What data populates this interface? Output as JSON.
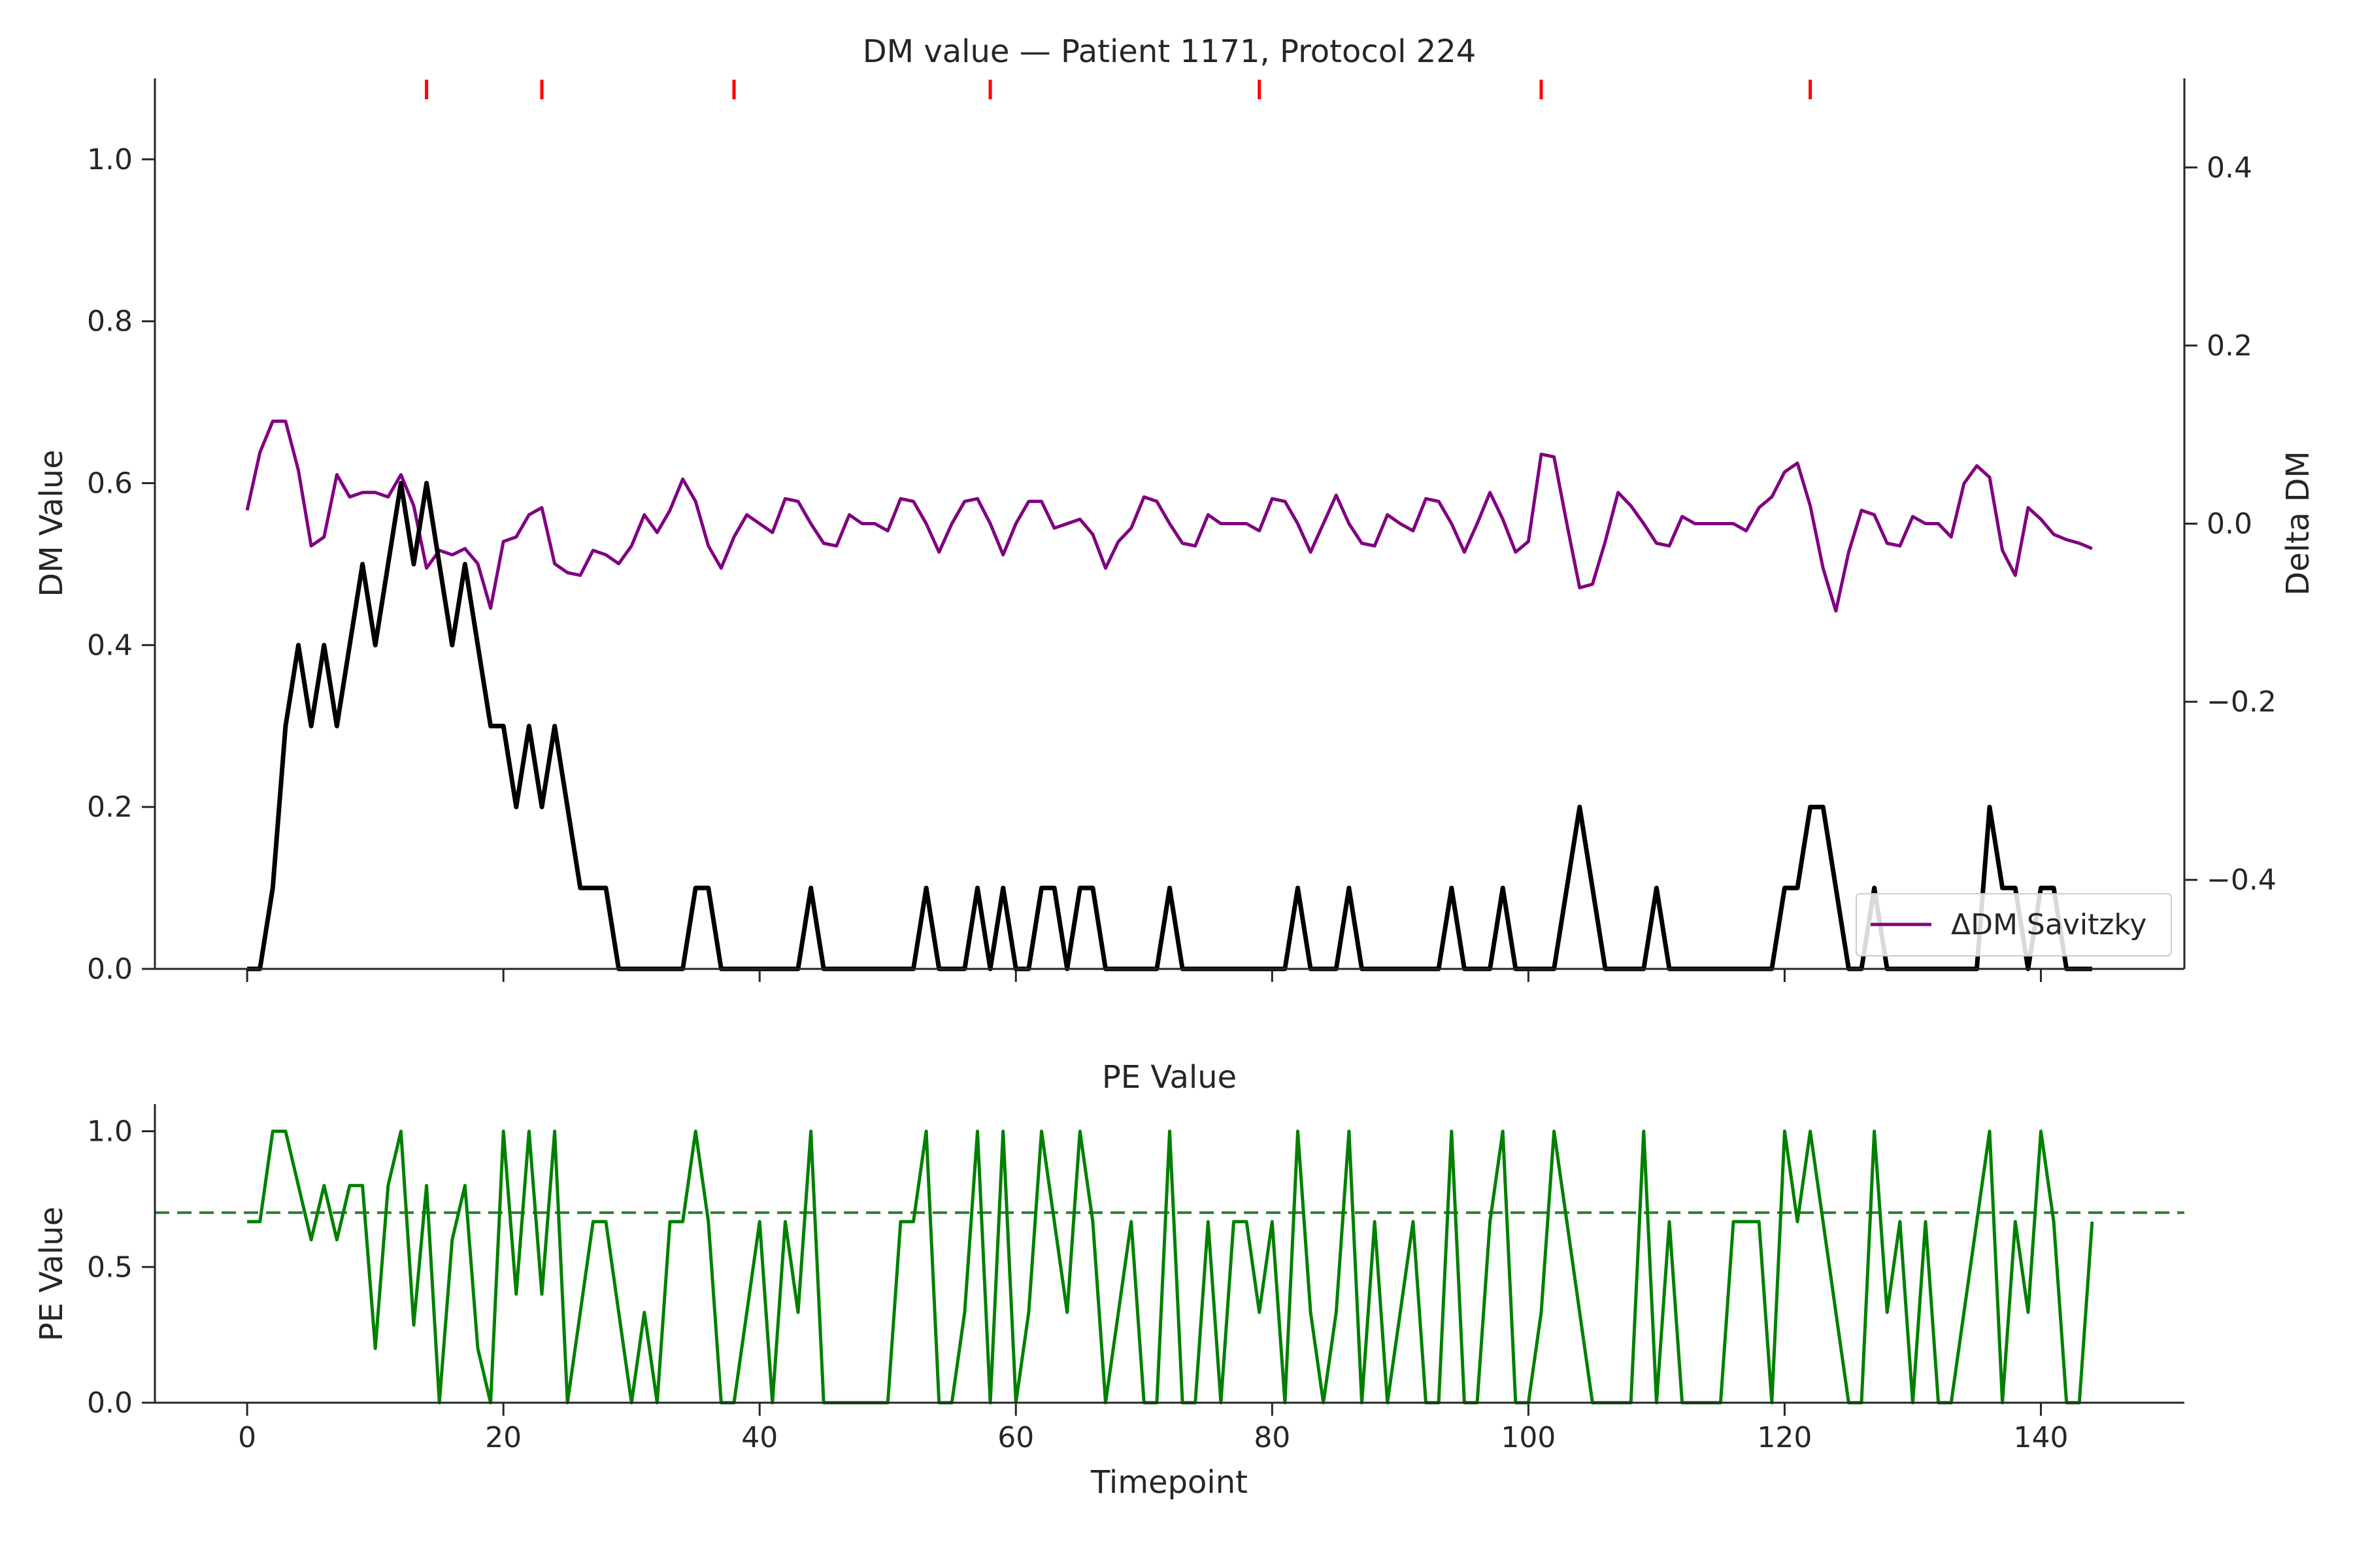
{
  "figure": {
    "title": "DM value — Patient 1171, Protocol 224",
    "bottom_title": "PE Value"
  },
  "chart_data": [
    {
      "type": "line",
      "title": "DM value — Patient 1171, Protocol 224",
      "xlabel": "Timepoint",
      "ylabel": "DM Value",
      "y2label": "Delta DM",
      "xlim": [
        -7.2,
        151.2
      ],
      "ylim": [
        0.0,
        1.1
      ],
      "y2lim": [
        -0.5,
        0.5
      ],
      "xticks": [
        0,
        20,
        40,
        60,
        80,
        100,
        120,
        140
      ],
      "yticks": [
        "0.0",
        "0.2",
        "0.4",
        "0.6",
        "0.8",
        "1.0"
      ],
      "y2ticks": [
        "−0.4",
        "−0.2",
        "0.0",
        "0.2",
        "0.4"
      ],
      "grid": false,
      "legend_position": "lower-right",
      "event_markers_x": [
        14,
        23,
        38,
        58,
        79,
        101,
        122
      ],
      "event_marker_color": "#ff0000",
      "series": [
        {
          "color": "#000000",
          "axis": "left",
          "x_start": 0,
          "values": [
            0.0,
            0.0,
            0.1,
            0.3,
            0.4,
            0.3,
            0.4,
            0.3,
            0.4,
            0.5,
            0.4,
            0.5,
            0.6,
            0.5,
            0.6,
            0.5,
            0.4,
            0.5,
            0.4,
            0.3,
            0.3,
            0.2,
            0.3,
            0.2,
            0.3,
            0.2,
            0.1,
            0.1,
            0.1,
            0.0,
            0.0,
            0.0,
            0.0,
            0.0,
            0.0,
            0.1,
            0.1,
            0.0,
            0.0,
            0.0,
            0.0,
            0.0,
            0.0,
            0.0,
            0.1,
            0.0,
            0.0,
            0.0,
            0.0,
            0.0,
            0.0,
            0.0,
            0.0,
            0.1,
            0.0,
            0.0,
            0.0,
            0.1,
            0.0,
            0.1,
            0.0,
            0.0,
            0.1,
            0.1,
            0.0,
            0.1,
            0.1,
            0.0,
            0.0,
            0.0,
            0.0,
            0.0,
            0.1,
            0.0,
            0.0,
            0.0,
            0.0,
            0.0,
            0.0,
            0.0,
            0.0,
            0.0,
            0.1,
            0.0,
            0.0,
            0.0,
            0.1,
            0.0,
            0.0,
            0.0,
            0.0,
            0.0,
            0.0,
            0.0,
            0.1,
            0.0,
            0.0,
            0.0,
            0.1,
            0.0,
            0.0,
            0.0,
            0.0,
            0.1,
            0.2,
            0.1,
            0.0,
            0.0,
            0.0,
            0.0,
            0.1,
            0.0,
            0.0,
            0.0,
            0.0,
            0.0,
            0.0,
            0.0,
            0.0,
            0.0,
            0.1,
            0.1,
            0.2,
            0.2,
            0.1,
            0.0,
            0.0,
            0.1,
            0.0,
            0.0,
            0.0,
            0.0,
            0.0,
            0.0,
            0.0,
            0.0,
            0.2,
            0.1,
            0.1,
            0.0,
            0.1,
            0.1,
            0.0,
            0.0,
            0.0
          ]
        },
        {
          "name": "ΔDM Savitzky",
          "color": "#800080",
          "axis": "right",
          "x_start": 0,
          "values": [
            0.015,
            0.08,
            0.115,
            0.115,
            0.06,
            -0.025,
            -0.015,
            0.055,
            0.03,
            0.035,
            0.035,
            0.03,
            0.055,
            0.02,
            -0.05,
            -0.03,
            -0.035,
            -0.028,
            -0.045,
            -0.095,
            -0.02,
            -0.015,
            0.01,
            0.018,
            -0.045,
            -0.055,
            -0.058,
            -0.03,
            -0.035,
            -0.045,
            -0.025,
            0.01,
            -0.01,
            0.015,
            0.05,
            0.025,
            -0.025,
            -0.05,
            -0.015,
            0.01,
            0.0,
            -0.01,
            0.028,
            0.025,
            0.0,
            -0.022,
            -0.025,
            0.01,
            0.0,
            0.0,
            -0.008,
            0.028,
            0.025,
            0.0,
            -0.032,
            0.0,
            0.025,
            0.028,
            0.0,
            -0.035,
            0.0,
            0.025,
            0.025,
            -0.005,
            0.0,
            0.005,
            -0.012,
            -0.05,
            -0.02,
            -0.005,
            0.03,
            0.025,
            0.0,
            -0.022,
            -0.025,
            0.01,
            0.0,
            0.0,
            0.0,
            -0.008,
            0.028,
            0.025,
            0.0,
            -0.032,
            0.0,
            0.032,
            0.0,
            -0.022,
            -0.025,
            0.01,
            0.0,
            -0.008,
            0.028,
            0.025,
            0.0,
            -0.032,
            0.0,
            0.035,
            0.005,
            -0.032,
            -0.02,
            0.078,
            0.075,
            0.0,
            -0.072,
            -0.068,
            -0.02,
            0.035,
            0.02,
            0.0,
            -0.022,
            -0.025,
            0.008,
            0.0,
            0.0,
            0.0,
            0.0,
            -0.008,
            0.018,
            0.03,
            0.058,
            0.068,
            0.02,
            -0.05,
            -0.098,
            -0.032,
            0.015,
            0.01,
            -0.022,
            -0.025,
            0.008,
            0.0,
            0.0,
            -0.015,
            0.045,
            0.065,
            0.052,
            -0.03,
            -0.058,
            0.018,
            0.005,
            -0.012,
            -0.018,
            -0.022,
            -0.028
          ]
        }
      ]
    },
    {
      "type": "line",
      "title": "PE Value",
      "xlabel": "Timepoint",
      "ylabel": "PE Value",
      "xlim": [
        -7.2,
        151.2
      ],
      "ylim": [
        0.0,
        1.1
      ],
      "xticks": [
        0,
        20,
        40,
        60,
        80,
        100,
        120,
        140
      ],
      "yticks": [
        "0.0",
        "0.5",
        "1.0"
      ],
      "grid": false,
      "threshold": 0.7,
      "threshold_style": "dashed",
      "series": [
        {
          "color": "#008000",
          "x_start": 0,
          "values": [
            0.667,
            0.667,
            1.0,
            1.0,
            0.8,
            0.6,
            0.8,
            0.6,
            0.8,
            0.8,
            0.2,
            0.8,
            1.0,
            0.286,
            0.8,
            0.0,
            0.6,
            0.8,
            0.2,
            0.0,
            1.0,
            0.4,
            1.0,
            0.4,
            1.0,
            0.0,
            0.333,
            0.667,
            0.667,
            0.333,
            0.0,
            0.333,
            0.0,
            0.667,
            0.667,
            1.0,
            0.667,
            0.0,
            0.0,
            0.333,
            0.667,
            0.0,
            0.667,
            0.333,
            1.0,
            0.0,
            0.0,
            0.0,
            0.0,
            0.0,
            0.0,
            0.667,
            0.667,
            1.0,
            0.0,
            0.0,
            0.333,
            1.0,
            0.0,
            1.0,
            0.0,
            0.333,
            1.0,
            0.667,
            0.333,
            1.0,
            0.667,
            0.0,
            0.333,
            0.667,
            0.0,
            0.0,
            1.0,
            0.0,
            0.0,
            0.667,
            0.0,
            0.667,
            0.667,
            0.333,
            0.667,
            0.0,
            1.0,
            0.333,
            0.0,
            0.333,
            1.0,
            0.0,
            0.667,
            0.0,
            0.333,
            0.667,
            0.0,
            0.0,
            1.0,
            0.0,
            0.0,
            0.667,
            1.0,
            0.0,
            0.0,
            0.333,
            1.0,
            0.667,
            0.333,
            0.0,
            0.0,
            0.0,
            0.0,
            1.0,
            0.0,
            0.667,
            0.0,
            0.0,
            0.0,
            0.0,
            0.667,
            0.667,
            0.667,
            0.0,
            1.0,
            0.667,
            1.0,
            0.667,
            0.333,
            0.0,
            0.0,
            1.0,
            0.333,
            0.667,
            0.0,
            0.667,
            0.0,
            0.0,
            0.333,
            0.667,
            1.0,
            0.0,
            0.667,
            0.333,
            1.0,
            0.667,
            0.0,
            0.0,
            0.667
          ]
        }
      ]
    }
  ]
}
